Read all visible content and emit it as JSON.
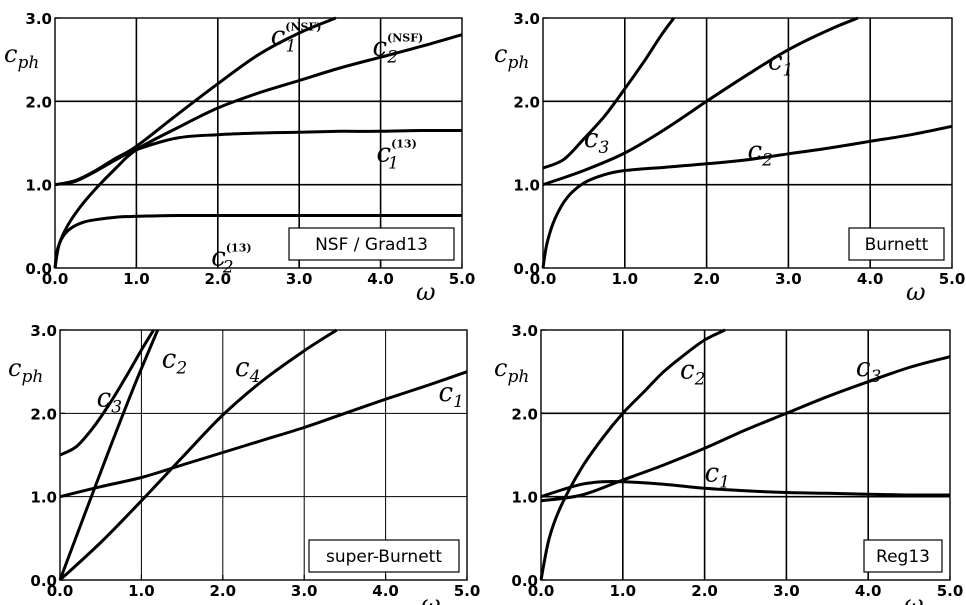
{
  "chart_data": [
    {
      "type": "line",
      "panel": "NSF / Grad13",
      "legend": "NSF / Grad13",
      "xlabel": "ω",
      "ylabel": "c_ph",
      "xlim": [
        0,
        5
      ],
      "ylim": [
        0,
        3
      ],
      "xticks": [
        "0.0",
        "1.0",
        "2.0",
        "3.0",
        "4.0",
        "5.0"
      ],
      "yticks": [
        "0.0",
        "1.0",
        "2.0",
        "3.0"
      ],
      "grid": true,
      "legend_position": "bottom-right",
      "series": [
        {
          "name": "c1^(NSF)",
          "label_base": "c",
          "label_sub": "1",
          "label_sup": "(NSF)",
          "label_at": [
            2.65,
            2.68
          ],
          "x": [
            0,
            0.25,
            0.5,
            0.75,
            1.0,
            1.5,
            2.0,
            2.5,
            3.0,
            3.45
          ],
          "y": [
            1.0,
            1.05,
            1.17,
            1.32,
            1.46,
            1.84,
            2.21,
            2.56,
            2.82,
            3.0
          ]
        },
        {
          "name": "c2^(NSF)",
          "label_base": "c",
          "label_sub": "2",
          "label_sup": "(NSF)",
          "label_at": [
            3.9,
            2.55
          ],
          "x": [
            0,
            0.05,
            0.15,
            0.3,
            0.5,
            0.75,
            1.0,
            1.5,
            2.0,
            2.5,
            3.0,
            3.5,
            4.0,
            4.5,
            5.0
          ],
          "y": [
            0,
            0.28,
            0.5,
            0.72,
            0.95,
            1.2,
            1.42,
            1.68,
            1.92,
            2.1,
            2.25,
            2.4,
            2.53,
            2.66,
            2.8
          ]
        },
        {
          "name": "c1^(13)",
          "label_base": "c",
          "label_sub": "1",
          "label_sup": "(13)",
          "label_at": [
            3.95,
            1.28
          ],
          "x": [
            0,
            0.25,
            0.5,
            0.75,
            1.0,
            1.5,
            2.0,
            2.5,
            3.0,
            3.5,
            4.0,
            4.5,
            5.0
          ],
          "y": [
            1.0,
            1.04,
            1.16,
            1.3,
            1.42,
            1.56,
            1.6,
            1.62,
            1.63,
            1.64,
            1.64,
            1.65,
            1.65
          ]
        },
        {
          "name": "c2^(13)",
          "label_base": "c",
          "label_sub": "2",
          "label_sup": "(13)",
          "label_at": [
            1.92,
            0.03
          ],
          "x": [
            0,
            0.03,
            0.1,
            0.2,
            0.35,
            0.5,
            0.75,
            1.0,
            1.5,
            2.0,
            3.0,
            4.0,
            5.0
          ],
          "y": [
            0,
            0.22,
            0.38,
            0.48,
            0.55,
            0.58,
            0.61,
            0.62,
            0.63,
            0.63,
            0.63,
            0.63,
            0.63
          ]
        }
      ]
    },
    {
      "type": "line",
      "panel": "Burnett",
      "legend": "Burnett",
      "xlabel": "ω",
      "ylabel": "c_ph",
      "xlim": [
        0,
        5
      ],
      "ylim": [
        0,
        3
      ],
      "xticks": [
        "0.0",
        "1.0",
        "2.0",
        "3.0",
        "4.0",
        "5.0"
      ],
      "yticks": [
        "0.0",
        "1.0",
        "2.0",
        "3.0"
      ],
      "grid": true,
      "legend_position": "bottom-right",
      "series": [
        {
          "name": "c3",
          "label_base": "c",
          "label_sub": "3",
          "label_at": [
            0.5,
            1.45
          ],
          "x": [
            0,
            0.25,
            0.5,
            0.75,
            1.0,
            1.25,
            1.45,
            1.6
          ],
          "y": [
            1.2,
            1.3,
            1.55,
            1.82,
            2.15,
            2.5,
            2.8,
            3.0
          ]
        },
        {
          "name": "c1",
          "label_base": "c",
          "label_sub": "1",
          "label_at": [
            2.75,
            2.38
          ],
          "x": [
            0,
            0.5,
            1.0,
            1.5,
            2.0,
            2.5,
            3.0,
            3.5,
            3.85
          ],
          "y": [
            1.0,
            1.17,
            1.38,
            1.67,
            2.0,
            2.32,
            2.62,
            2.86,
            3.0
          ]
        },
        {
          "name": "c2",
          "label_base": "c",
          "label_sub": "2",
          "label_at": [
            2.5,
            1.3
          ],
          "x": [
            0,
            0.05,
            0.15,
            0.3,
            0.5,
            0.75,
            1.0,
            1.5,
            2.0,
            2.5,
            3.0,
            3.5,
            4.0,
            4.5,
            5.0
          ],
          "y": [
            0,
            0.3,
            0.6,
            0.85,
            1.02,
            1.12,
            1.17,
            1.21,
            1.25,
            1.3,
            1.37,
            1.44,
            1.52,
            1.6,
            1.7
          ]
        }
      ]
    },
    {
      "type": "line",
      "panel": "super-Burnett",
      "legend": "super-Burnett",
      "xlabel": "ω",
      "ylabel": "c_ph",
      "xlim": [
        0,
        5
      ],
      "ylim": [
        0,
        3
      ],
      "xticks": [
        "0.0",
        "1.0",
        "2.0",
        "3.0",
        "4.0",
        "5.0"
      ],
      "yticks": [
        "0.0",
        "1.0",
        "2.0",
        "3.0"
      ],
      "grid": true,
      "legend_position": "bottom-right",
      "series": [
        {
          "name": "c3",
          "label_base": "c",
          "label_sub": "3",
          "label_at": [
            0.45,
            2.08
          ],
          "x": [
            0,
            0.2,
            0.4,
            0.6,
            0.8,
            1.0,
            1.15
          ],
          "y": [
            1.5,
            1.6,
            1.82,
            2.1,
            2.42,
            2.76,
            3.0
          ]
        },
        {
          "name": "c2",
          "label_base": "c",
          "label_sub": "2",
          "label_at": [
            1.25,
            2.55
          ],
          "x": [
            0,
            0.3,
            0.6,
            0.9,
            1.2
          ],
          "y": [
            0,
            0.78,
            1.55,
            2.3,
            3.0
          ]
        },
        {
          "name": "c4",
          "label_base": "c",
          "label_sub": "4",
          "label_at": [
            2.15,
            2.45
          ],
          "x": [
            0,
            0.5,
            1.0,
            1.5,
            2.0,
            2.5,
            3.0,
            3.4
          ],
          "y": [
            0,
            0.45,
            0.95,
            1.47,
            1.98,
            2.4,
            2.75,
            3.0
          ]
        },
        {
          "name": "c1",
          "label_base": "c",
          "label_sub": "1",
          "label_at": [
            4.65,
            2.15
          ],
          "x": [
            0,
            0.5,
            1.0,
            1.5,
            2.0,
            2.5,
            3.0,
            3.5,
            4.0,
            4.5,
            5.0
          ],
          "y": [
            1.0,
            1.12,
            1.23,
            1.38,
            1.53,
            1.68,
            1.83,
            2.0,
            2.17,
            2.33,
            2.5
          ]
        }
      ]
    },
    {
      "type": "line",
      "panel": "Reg13",
      "legend": "Reg13",
      "xlabel": "ω",
      "ylabel": "c_ph",
      "xlim": [
        0,
        5
      ],
      "ylim": [
        0,
        3
      ],
      "xticks": [
        "0.0",
        "1.0",
        "2.0",
        "3.0",
        "4.0",
        "5.0"
      ],
      "yticks": [
        "0.0",
        "1.0",
        "2.0",
        "3.0"
      ],
      "grid": true,
      "legend_position": "bottom-right",
      "series": [
        {
          "name": "c2",
          "label_base": "c",
          "label_sub": "2",
          "label_at": [
            1.7,
            2.42
          ],
          "x": [
            0,
            0.1,
            0.25,
            0.5,
            0.75,
            1.0,
            1.25,
            1.5,
            1.75,
            2.0,
            2.25
          ],
          "y": [
            0,
            0.5,
            0.9,
            1.35,
            1.7,
            2.0,
            2.25,
            2.5,
            2.7,
            2.88,
            3.0
          ]
        },
        {
          "name": "c3",
          "label_base": "c",
          "label_sub": "3",
          "label_at": [
            3.85,
            2.45
          ],
          "x": [
            0,
            0.5,
            1.0,
            1.5,
            2.0,
            2.5,
            3.0,
            3.5,
            4.0,
            4.5,
            5.0
          ],
          "y": [
            0.95,
            1.02,
            1.2,
            1.38,
            1.58,
            1.8,
            2.0,
            2.2,
            2.38,
            2.55,
            2.68
          ]
        },
        {
          "name": "c1",
          "label_base": "c",
          "label_sub": "1",
          "label_at": [
            2.0,
            1.18
          ],
          "x": [
            0,
            0.25,
            0.5,
            0.75,
            1.0,
            1.5,
            2.0,
            2.5,
            3.0,
            3.5,
            4.0,
            4.5,
            5.0
          ],
          "y": [
            1.0,
            1.08,
            1.15,
            1.18,
            1.18,
            1.15,
            1.1,
            1.07,
            1.05,
            1.04,
            1.03,
            1.02,
            1.02
          ]
        }
      ]
    }
  ]
}
